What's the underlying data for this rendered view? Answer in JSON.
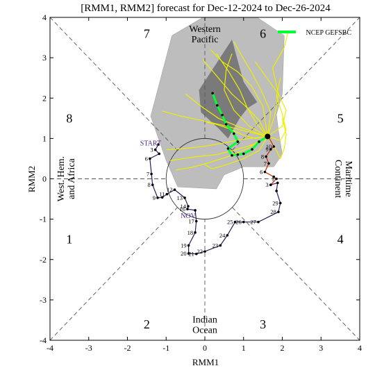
{
  "chart_data": {
    "type": "line",
    "title": "[RMM1, RMM2] forecast for Dec-12-2024 to Dec-26-2024",
    "xlabel": "RMM1",
    "ylabel": "RMM2",
    "xlim": [
      -4,
      4
    ],
    "ylim": [
      -4,
      4
    ],
    "xticks": [
      -4,
      -3,
      -2,
      -1,
      0,
      1,
      2,
      3,
      4
    ],
    "yticks": [
      -4,
      -3,
      -2,
      -1,
      0,
      1,
      2,
      3,
      4
    ],
    "grid": false,
    "legend": {
      "placement": "top-right",
      "entries": [
        "NCEP GEFSBC"
      ]
    },
    "phase_numbers": [
      {
        "label": "1",
        "x": -3.5,
        "y": -1.5
      },
      {
        "label": "2",
        "x": -1.5,
        "y": -3.6
      },
      {
        "label": "3",
        "x": 1.5,
        "y": -3.6
      },
      {
        "label": "4",
        "x": 3.5,
        "y": -1.5
      },
      {
        "label": "5",
        "x": 3.5,
        "y": 1.5
      },
      {
        "label": "6",
        "x": 1.5,
        "y": 3.6
      },
      {
        "label": "7",
        "x": -1.5,
        "y": 3.6
      },
      {
        "label": "8",
        "x": -3.5,
        "y": 1.5
      }
    ],
    "region_labels": [
      {
        "lines": [
          "Western",
          "Pacific"
        ],
        "x": 0,
        "y": 3.6,
        "rotate": 0
      },
      {
        "lines": [
          "Indian",
          "Ocean"
        ],
        "x": 0,
        "y": -3.6,
        "rotate": 0
      },
      {
        "lines": [
          "West. Hem.",
          "and Africa"
        ],
        "x": -3.6,
        "y": 0,
        "rotate": -90
      },
      {
        "lines": [
          "Maritime",
          "Continent"
        ],
        "x": 3.6,
        "y": 0,
        "rotate": 90
      }
    ],
    "annotations": [
      {
        "text": "START",
        "x": -1.4,
        "y": 0.83,
        "color": "#4b1e8a"
      },
      {
        "text": "NOV",
        "x": -0.43,
        "y": -0.97,
        "color": "#4b1e8a"
      }
    ],
    "observed_purple": {
      "color": "#2e1a5a",
      "points": [
        {
          "label": "",
          "x": -1.2,
          "y": 0.85
        },
        {
          "label": "3",
          "x": -1.28,
          "y": 0.72
        },
        {
          "label": "",
          "x": -1.18,
          "y": 0.62
        },
        {
          "label": "6",
          "x": -1.42,
          "y": 0.5
        },
        {
          "label": "7",
          "x": -1.38,
          "y": 0.12
        },
        {
          "label": "8",
          "x": -1.35,
          "y": -0.15
        },
        {
          "label": "9",
          "x": -1.22,
          "y": -0.47
        },
        {
          "label": "",
          "x": -1.1,
          "y": -0.46
        },
        {
          "label": "11",
          "x": -0.98,
          "y": -0.38
        },
        {
          "label": "12",
          "x": -0.78,
          "y": -0.27
        },
        {
          "label": "13",
          "x": -0.52,
          "y": -0.47
        },
        {
          "label": "14",
          "x": -0.43,
          "y": -0.68
        },
        {
          "label": "16",
          "x": -0.45,
          "y": -0.75
        },
        {
          "label": "",
          "x": -0.25,
          "y": -0.78
        },
        {
          "label": "17",
          "x": -0.22,
          "y": -1.05
        },
        {
          "label": "18",
          "x": -0.25,
          "y": -1.33
        },
        {
          "label": "19",
          "x": -0.42,
          "y": -1.65
        },
        {
          "label": "20",
          "x": -0.42,
          "y": -1.85
        },
        {
          "label": "21",
          "x": -0.22,
          "y": -1.86
        },
        {
          "label": "22",
          "x": 0.0,
          "y": -1.8
        },
        {
          "label": "23",
          "x": 0.4,
          "y": -1.65
        },
        {
          "label": "24",
          "x": 0.58,
          "y": -1.4
        },
        {
          "label": "25",
          "x": 0.78,
          "y": -1.07
        },
        {
          "label": "26",
          "x": 1.0,
          "y": -1.07
        },
        {
          "label": "27",
          "x": 1.38,
          "y": -1.07
        },
        {
          "label": "28",
          "x": 1.9,
          "y": -0.82
        },
        {
          "label": "29",
          "x": 1.95,
          "y": -0.6
        },
        {
          "label": "",
          "x": 1.85,
          "y": -0.3
        },
        {
          "label": "",
          "x": 1.88,
          "y": -0.1
        },
        {
          "label": "3",
          "x": 1.7,
          "y": -0.15
        }
      ]
    },
    "observed_red": {
      "color": "#cc2200",
      "points": [
        {
          "label": "",
          "x": 1.7,
          "y": -0.15
        },
        {
          "label": "1",
          "x": 1.85,
          "y": 0.0
        },
        {
          "label": "",
          "x": 1.78,
          "y": 0.05
        },
        {
          "label": "6",
          "x": 1.55,
          "y": 0.17
        },
        {
          "label": "7",
          "x": 1.65,
          "y": 0.38
        },
        {
          "label": "8",
          "x": 1.58,
          "y": 0.55
        },
        {
          "label": "9",
          "x": 1.7,
          "y": 0.73
        },
        {
          "label": "10",
          "x": 1.78,
          "y": 0.8
        },
        {
          "label": "",
          "x": 1.65,
          "y": 1.03
        }
      ]
    },
    "ensemble_mean": {
      "name": "NCEP GEFSBC",
      "color": "#00ff33",
      "x": [
        1.62,
        1.4,
        1.22,
        1.0,
        0.85,
        0.7,
        0.6,
        0.85,
        0.75,
        0.55,
        0.45,
        0.32,
        0.2
      ],
      "y": [
        1.05,
        0.92,
        0.73,
        0.62,
        0.6,
        0.58,
        0.75,
        0.92,
        1.12,
        1.35,
        1.58,
        1.82,
        2.12
      ]
    },
    "ensemble_members": [
      {
        "x": [
          1.62,
          1.8,
          1.9,
          1.75,
          2.05,
          2.15
        ],
        "y": [
          1.05,
          1.55,
          2.1,
          2.75,
          3.25,
          3.65
        ]
      },
      {
        "x": [
          1.62,
          1.4,
          1.05,
          0.7,
          0.35,
          -0.05
        ],
        "y": [
          1.05,
          1.45,
          1.8,
          2.1,
          2.5,
          2.95
        ]
      },
      {
        "x": [
          1.62,
          1.05,
          0.5,
          -0.1,
          -0.6,
          -1.1
        ],
        "y": [
          1.05,
          1.18,
          1.32,
          1.45,
          1.55,
          1.68
        ]
      },
      {
        "x": [
          1.62,
          1.1,
          0.6,
          0.1,
          -0.35,
          -0.75
        ],
        "y": [
          1.05,
          0.75,
          0.55,
          0.4,
          0.28,
          0.22
        ]
      },
      {
        "x": [
          1.62,
          2.0,
          2.1,
          1.9,
          1.6,
          1.3
        ],
        "y": [
          1.05,
          1.3,
          1.7,
          2.1,
          2.5,
          2.9
        ]
      },
      {
        "x": [
          1.62,
          1.3,
          0.95,
          0.6,
          0.3,
          0.05
        ],
        "y": [
          1.05,
          1.0,
          1.1,
          1.25,
          1.35,
          1.4
        ]
      },
      {
        "x": [
          1.62,
          1.7,
          1.45,
          1.2,
          0.95,
          0.75
        ],
        "y": [
          1.05,
          1.65,
          2.2,
          2.65,
          3.05,
          3.4
        ]
      },
      {
        "x": [
          1.62,
          1.25,
          0.8,
          0.3,
          -0.2,
          -0.9
        ],
        "y": [
          1.05,
          0.85,
          0.72,
          0.6,
          0.55,
          0.45
        ]
      },
      {
        "x": [
          1.62,
          1.95,
          2.1,
          2.0,
          1.85,
          1.95
        ],
        "y": [
          1.05,
          0.95,
          1.2,
          1.6,
          2.05,
          2.5
        ]
      },
      {
        "x": [
          1.62,
          1.15,
          0.75,
          0.5,
          0.55,
          0.7
        ],
        "y": [
          1.05,
          1.3,
          1.7,
          2.2,
          2.7,
          3.1
        ]
      },
      {
        "x": [
          1.62,
          1.35,
          1.1,
          0.9,
          0.62,
          0.3
        ],
        "y": [
          1.05,
          1.35,
          1.75,
          2.2,
          2.65,
          3.1
        ]
      },
      {
        "x": [
          1.62,
          1.0,
          0.45,
          -0.05,
          -0.55,
          -1.0
        ],
        "y": [
          1.05,
          0.98,
          0.88,
          0.8,
          0.75,
          0.72
        ]
      },
      {
        "x": [
          1.62,
          1.85,
          1.95,
          2.05,
          2.1,
          2.0
        ],
        "y": [
          1.05,
          0.7,
          0.5,
          0.75,
          1.1,
          1.5
        ]
      },
      {
        "x": [
          1.62,
          1.5,
          1.2,
          0.85,
          0.45,
          0.15
        ],
        "y": [
          1.05,
          1.8,
          2.3,
          2.65,
          2.9,
          3.2
        ]
      },
      {
        "x": [
          1.62,
          1.3,
          0.85,
          0.35,
          -0.1,
          -0.5
        ],
        "y": [
          1.05,
          1.15,
          1.3,
          1.5,
          1.8,
          2.1
        ]
      },
      {
        "x": [
          1.62,
          1.4,
          1.0,
          0.55,
          0.2,
          0.0
        ],
        "y": [
          1.05,
          0.7,
          0.5,
          0.35,
          0.25,
          0.35
        ]
      }
    ],
    "spread_outer": {
      "x": [
        -0.85,
        -0.05,
        0.65,
        1.35,
        2.05,
        2.0,
        1.85,
        1.9,
        2.0,
        1.78,
        1.0,
        0.5,
        0.3,
        -0.7,
        -1.0,
        -1.4,
        -0.85
      ],
      "y": [
        3.55,
        4.0,
        4.0,
        4.0,
        3.55,
        2.1,
        1.6,
        1.2,
        0.6,
        0.3,
        0.3,
        0.1,
        -0.25,
        -0.2,
        0.45,
        1.55,
        3.55
      ]
    },
    "spread_inner": {
      "x": [
        -0.15,
        0.7,
        1.0,
        1.35,
        1.1,
        0.9,
        0.6,
        0.35,
        -0.1,
        -0.15
      ],
      "y": [
        2.2,
        3.45,
        2.4,
        1.9,
        1.75,
        1.5,
        1.0,
        1.25,
        1.65,
        2.2
      ]
    }
  }
}
